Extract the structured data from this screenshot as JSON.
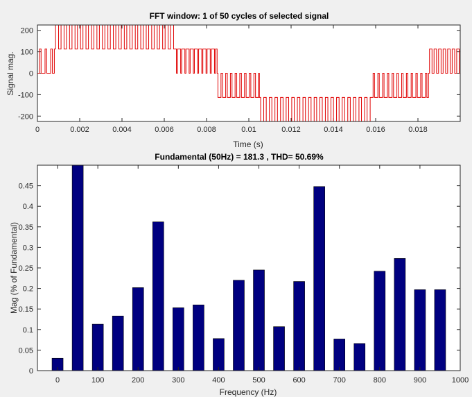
{
  "chart_data": [
    {
      "type": "line",
      "title": "FFT window: 1 of 50 cycles of selected signal",
      "xlabel": "Time (s)",
      "ylabel": "Signal mag.",
      "xlim": [
        0,
        0.02
      ],
      "ylim": [
        -225,
        225
      ],
      "x_ticks": [
        0,
        0.002,
        0.004,
        0.006,
        0.008,
        0.01,
        0.012,
        0.014,
        0.016,
        0.018
      ],
      "y_ticks": [
        -200,
        -100,
        0,
        100,
        200
      ],
      "x_tick_labels": [
        "0",
        "0.002",
        "0.004",
        "0.006",
        "0.008",
        "0.01",
        "0.012",
        "0.014",
        "0.016",
        "0.018"
      ],
      "y_tick_labels": [
        "-200",
        "-100",
        "0",
        "100",
        "200"
      ],
      "series_color": "#e00000",
      "waveform": "multilevel PWM stepped signal, levels 0, ±113, ±226",
      "levels": [
        -226,
        -113,
        0,
        113,
        226
      ],
      "segments": [
        {
          "t0": 0.0,
          "t1": 0.0008,
          "base": 0,
          "high": 113,
          "n": 3,
          "duty": 0.3
        },
        {
          "t0": 0.0008,
          "t1": 0.0065,
          "base": 113,
          "high": 226,
          "n": 22,
          "duty": 0.55
        },
        {
          "t0": 0.0065,
          "t1": 0.0085,
          "base": 113,
          "high": 0,
          "n": 10,
          "duty": 0.25
        },
        {
          "t0": 0.0085,
          "t1": 0.0105,
          "base": 0,
          "high": -113,
          "n": 9,
          "duty": 0.65
        },
        {
          "t0": 0.0105,
          "t1": 0.0158,
          "base": -113,
          "high": -226,
          "n": 20,
          "duty": 0.55
        },
        {
          "t0": 0.0158,
          "t1": 0.0185,
          "base": -113,
          "high": 0,
          "n": 12,
          "duty": 0.3
        },
        {
          "t0": 0.0185,
          "t1": 0.02,
          "base": 0,
          "high": 113,
          "n": 7,
          "duty": 0.55
        }
      ]
    },
    {
      "type": "bar",
      "title": "Fundamental (50Hz) = 181.3 , THD= 50.69%",
      "xlabel": "Frequency (Hz)",
      "ylabel": "Mag (% of Fundamental)",
      "xlim": [
        -50,
        1000
      ],
      "ylim": [
        0,
        0.5
      ],
      "x_ticks": [
        0,
        100,
        200,
        300,
        400,
        500,
        600,
        700,
        800,
        900,
        1000
      ],
      "y_ticks": [
        0,
        0.05,
        0.1,
        0.15,
        0.2,
        0.25,
        0.3,
        0.35,
        0.4,
        0.45
      ],
      "x_tick_labels": [
        "0",
        "100",
        "200",
        "300",
        "400",
        "500",
        "600",
        "700",
        "800",
        "900",
        "1000"
      ],
      "y_tick_labels": [
        "0",
        "0.05",
        "0.1",
        "0.15",
        "0.2",
        "0.25",
        "0.3",
        "0.35",
        "0.4",
        "0.45"
      ],
      "bar_color": "#000080",
      "x": [
        0,
        50,
        100,
        150,
        200,
        250,
        300,
        350,
        400,
        450,
        500,
        550,
        600,
        650,
        700,
        750,
        800,
        850,
        900,
        950
      ],
      "values": [
        0.03,
        0.5,
        0.113,
        0.133,
        0.202,
        0.362,
        0.153,
        0.16,
        0.078,
        0.22,
        0.245,
        0.107,
        0.217,
        0.448,
        0.077,
        0.066,
        0.242,
        0.273,
        0.197,
        0.197
      ]
    }
  ]
}
